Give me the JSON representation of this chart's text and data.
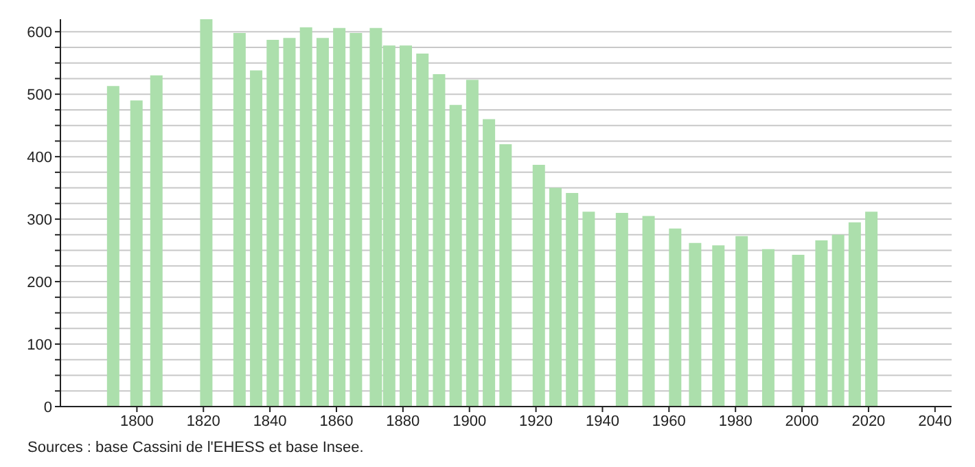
{
  "chart_data": {
    "type": "bar",
    "x": [
      1793,
      1800,
      1806,
      1821,
      1831,
      1836,
      1841,
      1846,
      1851,
      1856,
      1861,
      1866,
      1872,
      1876,
      1881,
      1886,
      1891,
      1896,
      1901,
      1906,
      1911,
      1921,
      1926,
      1931,
      1936,
      1946,
      1954,
      1962,
      1968,
      1975,
      1982,
      1990,
      1999,
      2006,
      2011,
      2016,
      2021
    ],
    "values": [
      513,
      490,
      530,
      620,
      598,
      538,
      587,
      590,
      607,
      590,
      606,
      598,
      606,
      578,
      578,
      565,
      532,
      483,
      523,
      460,
      420,
      387,
      350,
      342,
      312,
      310,
      305,
      285,
      262,
      258,
      273,
      252,
      243,
      266,
      275,
      295,
      312
    ],
    "color": "#acdfac",
    "xlim": [
      1777,
      2045
    ],
    "xticks": [
      1800,
      1820,
      1840,
      1860,
      1880,
      1900,
      1920,
      1940,
      1960,
      1980,
      2000,
      2020,
      2040
    ],
    "ylim": [
      0,
      620
    ],
    "yticks": [
      0,
      {
        "value": 25,
        "label": null
      },
      {
        "value": 50,
        "label": null
      },
      {
        "value": 75,
        "label": null
      },
      100,
      {
        "value": 125,
        "label": null
      },
      {
        "value": 150,
        "label": null
      },
      {
        "value": 175,
        "label": null
      },
      200,
      {
        "value": 225,
        "label": null
      },
      {
        "value": 250,
        "label": null
      },
      {
        "value": 275,
        "label": null
      },
      300,
      {
        "value": 325,
        "label": null
      },
      {
        "value": 350,
        "label": null
      },
      {
        "value": 375,
        "label": null
      },
      400,
      {
        "value": 425,
        "label": null
      },
      {
        "value": 450,
        "label": null
      },
      {
        "value": 475,
        "label": null
      },
      500,
      {
        "value": 525,
        "label": null
      },
      {
        "value": 550,
        "label": null
      },
      {
        "value": 575,
        "label": null
      },
      600
    ],
    "grid": "y",
    "annotations": [
      "Sources : base Cassini de l'EHESS et base Insee."
    ]
  }
}
